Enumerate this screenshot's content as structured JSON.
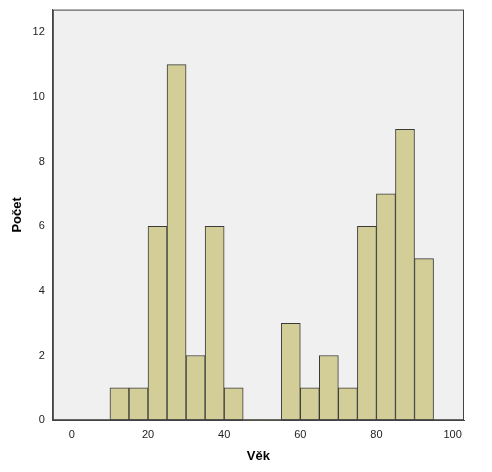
{
  "chart_data": {
    "type": "histogram",
    "x_label": "Věk",
    "y_label": "Počet",
    "bins": [
      10,
      15,
      20,
      25,
      30,
      35,
      40,
      45,
      50,
      55,
      60,
      65,
      70,
      75,
      80,
      85,
      90,
      95
    ],
    "counts": [
      1,
      1,
      6,
      11,
      2,
      6,
      1,
      0,
      0,
      3,
      1,
      2,
      1,
      6,
      7,
      9,
      5
    ],
    "color": "#d3ce97",
    "xlim": [
      -5,
      103
    ],
    "xticks": [
      0,
      20,
      40,
      60,
      80,
      100
    ],
    "ylim": [
      0,
      12.7
    ],
    "yticks": [
      0,
      2,
      4,
      6,
      8,
      10,
      12
    ],
    "grid": false
  }
}
